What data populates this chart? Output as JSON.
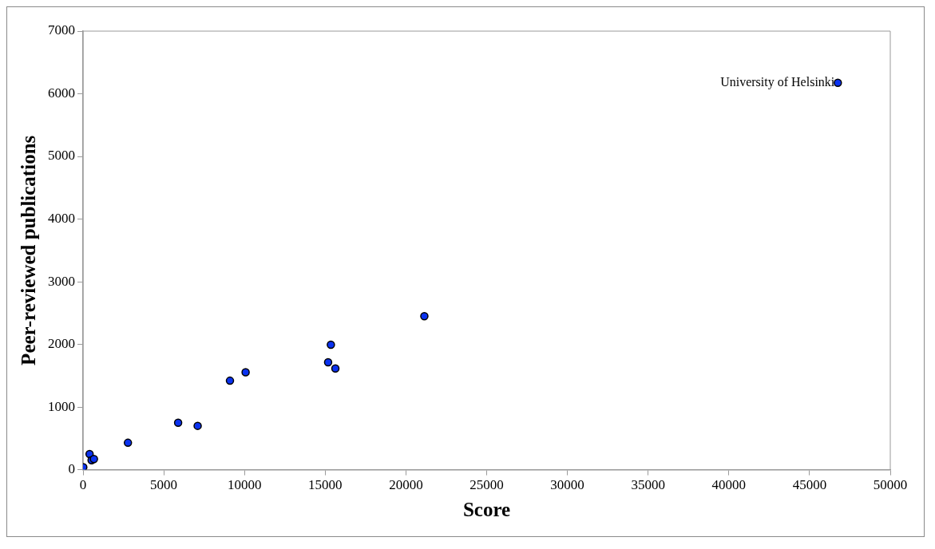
{
  "chart_data": {
    "type": "scatter",
    "xlabel": "Score",
    "ylabel": "Peer-reviewed publications",
    "x": [
      15,
      405,
      530,
      675,
      2780,
      5890,
      7100,
      9100,
      10070,
      15180,
      15350,
      15630,
      21140,
      46750
    ],
    "values": [
      40,
      250,
      150,
      170,
      430,
      750,
      700,
      1420,
      1555,
      1715,
      1995,
      1615,
      2450,
      6175
    ],
    "color": "#0a32f0",
    "marker": "circle",
    "xlim": [
      0,
      50000
    ],
    "xticks": [
      0,
      5000,
      10000,
      15000,
      20000,
      25000,
      30000,
      35000,
      40000,
      45000,
      50000
    ],
    "ylim": [
      0,
      7000
    ],
    "yticks": [
      0,
      1000,
      2000,
      3000,
      4000,
      5000,
      6000,
      7000
    ],
    "grid": false,
    "legend": false,
    "annotations": [
      {
        "text": "University of Helsinki",
        "x": 46750,
        "y": 6175
      }
    ]
  }
}
